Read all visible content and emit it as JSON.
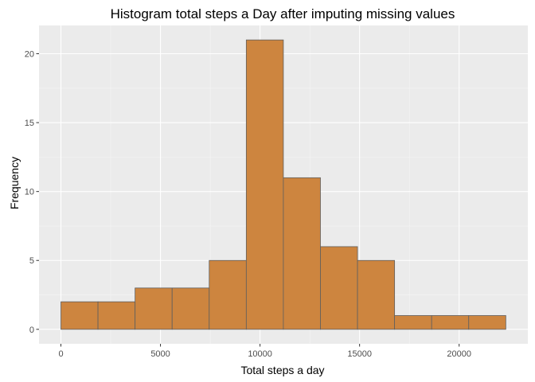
{
  "chart_data": {
    "type": "bar",
    "title": "Histogram total steps a Day after imputing missing values",
    "xlabel": "Total steps a day",
    "ylabel": "Frequency",
    "bin_width": 1862,
    "bins": [
      {
        "start": 0,
        "end": 1862,
        "count": 2
      },
      {
        "start": 1862,
        "end": 3724,
        "count": 2
      },
      {
        "start": 3724,
        "end": 5586,
        "count": 3
      },
      {
        "start": 5586,
        "end": 7448,
        "count": 3
      },
      {
        "start": 7448,
        "end": 9310,
        "count": 5
      },
      {
        "start": 9310,
        "end": 11172,
        "count": 21
      },
      {
        "start": 11172,
        "end": 13034,
        "count": 11
      },
      {
        "start": 13034,
        "end": 14896,
        "count": 6
      },
      {
        "start": 14896,
        "end": 16758,
        "count": 5
      },
      {
        "start": 16758,
        "end": 18620,
        "count": 1
      },
      {
        "start": 18620,
        "end": 20482,
        "count": 1
      },
      {
        "start": 20482,
        "end": 22344,
        "count": 1
      }
    ],
    "xlim": [
      -1100,
      23450
    ],
    "ylim": [
      -1.05,
      22.05
    ],
    "x_ticks": [
      0,
      5000,
      10000,
      15000,
      20000
    ],
    "x_tick_labels": [
      "0",
      "5000",
      "10000",
      "15000",
      "20000"
    ],
    "y_ticks": [
      0,
      5,
      10,
      15,
      20
    ],
    "y_tick_labels": [
      "0",
      "5",
      "10",
      "15",
      "20"
    ],
    "grid": true,
    "colors": {
      "bar_fill": "#CD853F",
      "bar_stroke": "#5f5f5f",
      "panel_bg": "#EBEBEB",
      "grid_major": "#FFFFFF",
      "tick_text": "#4D4D4D"
    }
  }
}
